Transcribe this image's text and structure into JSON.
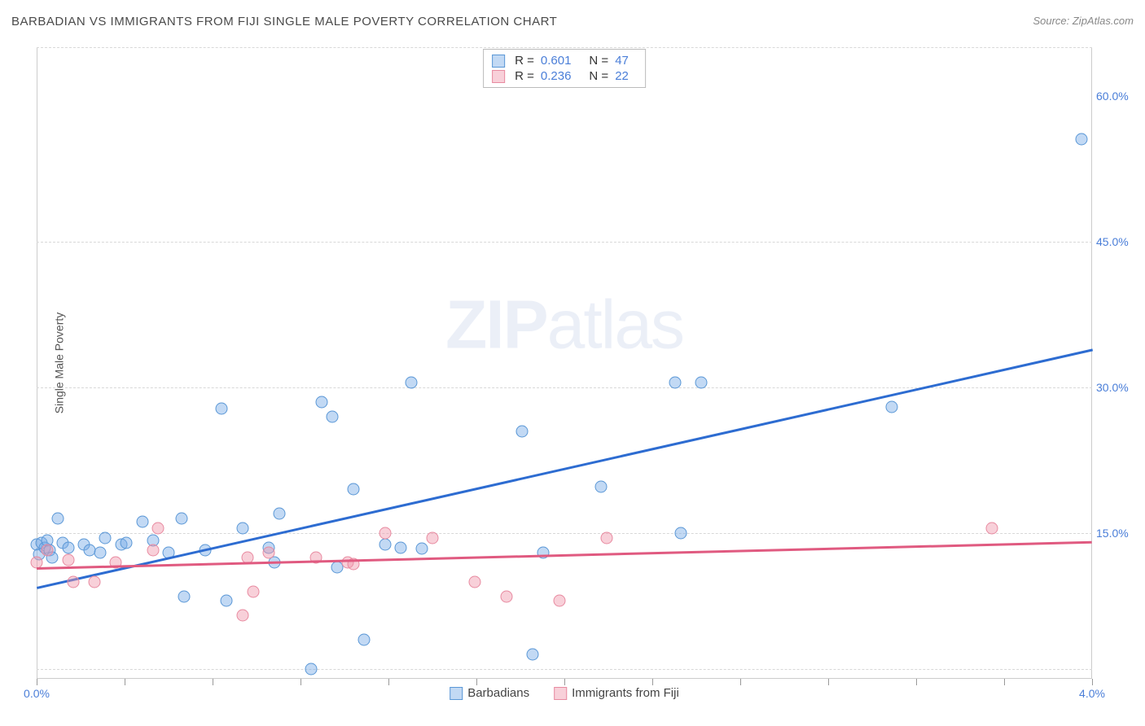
{
  "chart": {
    "title": "BARBADIAN VS IMMIGRANTS FROM FIJI SINGLE MALE POVERTY CORRELATION CHART",
    "source_prefix": "Source: ",
    "source_name": "ZipAtlas.com",
    "y_axis_label": "Single Male Poverty",
    "watermark_a": "ZIP",
    "watermark_b": "atlas",
    "xlim": [
      0.0,
      4.0
    ],
    "ylim": [
      0.0,
      65.0
    ],
    "yticks": [
      15.0,
      30.0,
      45.0,
      60.0
    ],
    "ytick_labels": [
      "15.0%",
      "30.0%",
      "45.0%",
      "60.0%"
    ],
    "ygrid": [
      1.0,
      15.0,
      30.0,
      45.0,
      65.0
    ],
    "xticks": [
      0.0,
      0.333,
      0.666,
      1.0,
      1.333,
      1.666,
      2.0,
      2.333,
      2.666,
      3.0,
      3.333,
      3.666,
      4.0
    ],
    "xtick_labels": {
      "0.0": "0.0%",
      "4.0": "4.0%"
    },
    "series": [
      {
        "name": "Barbadians",
        "fill": "rgba(120,170,230,0.45)",
        "stroke": "#5a97d6",
        "trend_color": "#2d6cd1",
        "marker_r": 7.5,
        "stats": {
          "R": "0.601",
          "N": "47"
        },
        "trend": {
          "x1": 0.0,
          "y1": 9.5,
          "x2": 4.0,
          "y2": 34.0
        },
        "points": [
          [
            0.0,
            13.8
          ],
          [
            0.01,
            12.8
          ],
          [
            0.02,
            14.0
          ],
          [
            0.03,
            13.5
          ],
          [
            0.04,
            14.2
          ],
          [
            0.05,
            13.2
          ],
          [
            0.06,
            12.5
          ],
          [
            0.08,
            16.5
          ],
          [
            0.1,
            14.0
          ],
          [
            0.12,
            13.5
          ],
          [
            0.18,
            13.8
          ],
          [
            0.2,
            13.2
          ],
          [
            0.24,
            13.0
          ],
          [
            0.26,
            14.5
          ],
          [
            0.32,
            13.8
          ],
          [
            0.34,
            14.0
          ],
          [
            0.4,
            16.2
          ],
          [
            0.44,
            14.2
          ],
          [
            0.5,
            13.0
          ],
          [
            0.55,
            16.5
          ],
          [
            0.56,
            8.5
          ],
          [
            0.64,
            13.2
          ],
          [
            0.7,
            27.8
          ],
          [
            0.72,
            8.0
          ],
          [
            0.78,
            15.5
          ],
          [
            0.88,
            13.5
          ],
          [
            0.9,
            12.0
          ],
          [
            0.92,
            17.0
          ],
          [
            1.04,
            1.0
          ],
          [
            1.08,
            28.5
          ],
          [
            1.12,
            27.0
          ],
          [
            1.14,
            11.5
          ],
          [
            1.2,
            19.5
          ],
          [
            1.24,
            4.0
          ],
          [
            1.32,
            13.8
          ],
          [
            1.38,
            13.5
          ],
          [
            1.42,
            30.5
          ],
          [
            1.46,
            13.4
          ],
          [
            1.84,
            25.5
          ],
          [
            1.88,
            2.5
          ],
          [
            1.92,
            13.0
          ],
          [
            2.14,
            19.8
          ],
          [
            2.42,
            30.5
          ],
          [
            2.44,
            15.0
          ],
          [
            2.52,
            30.5
          ],
          [
            3.24,
            28.0
          ],
          [
            3.96,
            55.5
          ]
        ]
      },
      {
        "name": "Immigrants from Fiji",
        "fill": "rgba(240,150,170,0.45)",
        "stroke": "#e88aa0",
        "trend_color": "#e05a80",
        "marker_r": 7.5,
        "stats": {
          "R": "0.236",
          "N": "22"
        },
        "trend": {
          "x1": 0.0,
          "y1": 11.5,
          "x2": 4.0,
          "y2": 14.2
        },
        "points": [
          [
            0.0,
            12.0
          ],
          [
            0.04,
            13.2
          ],
          [
            0.12,
            12.2
          ],
          [
            0.14,
            10.0
          ],
          [
            0.22,
            10.0
          ],
          [
            0.3,
            12.0
          ],
          [
            0.44,
            13.2
          ],
          [
            0.46,
            15.5
          ],
          [
            0.78,
            6.5
          ],
          [
            0.8,
            12.5
          ],
          [
            0.82,
            9.0
          ],
          [
            0.88,
            13.0
          ],
          [
            1.06,
            12.5
          ],
          [
            1.18,
            12.0
          ],
          [
            1.2,
            11.8
          ],
          [
            1.32,
            15.0
          ],
          [
            1.5,
            14.5
          ],
          [
            1.66,
            10.0
          ],
          [
            1.78,
            8.5
          ],
          [
            1.98,
            8.0
          ],
          [
            2.16,
            14.5
          ],
          [
            3.62,
            15.5
          ]
        ]
      }
    ],
    "stats_labels": {
      "R": "R =",
      "N": "N ="
    },
    "legend_bottom": [
      "Barbadians",
      "Immigrants from Fiji"
    ],
    "colors": {
      "axis_text": "#4a7ed8",
      "grid": "#d8d8d8",
      "background": "#ffffff"
    }
  }
}
